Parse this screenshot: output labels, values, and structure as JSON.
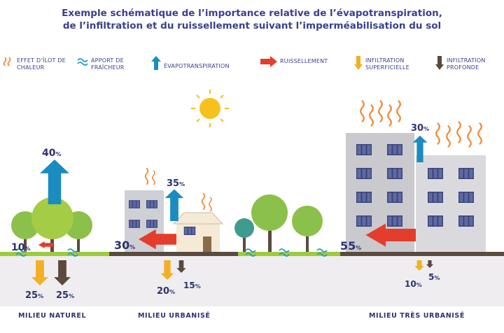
{
  "title": {
    "line1": "Exemple schématique de l’importance relative de l’évapotranspiration,",
    "line2": "de l’infiltration et du ruissellement suivant l’imperméabilisation du sol"
  },
  "legend": {
    "heat_island": "EFFET D’ÎLOT DE CHALEUR",
    "coolness": "APPORT DE FRAÎCHEUR",
    "evapotranspiration": "ÉVAPOTRANSPIRATION",
    "runoff": "RUISSELLEMENT",
    "shallow_infiltration": "INFILTRATION SUPERFICIELLE",
    "deep_infiltration": "INFILTRATION PROFONDE"
  },
  "colors": {
    "title": "#3a3f8f",
    "evapotranspiration": "#1a8cc1",
    "runoff": "#e53d2b",
    "shallow_infiltration": "#f2b022",
    "deep_infiltration": "#5a4a3c",
    "heat": "#ef8a3a",
    "coolness": "#2a9ccc",
    "sun": "#f6c11c",
    "tree": "#8bc04a",
    "ground": "#5b4b3f",
    "grass": "#9ccc3c"
  },
  "zones": [
    {
      "label": "MILIEU NATUREL",
      "evapotranspiration": "40",
      "runoff": "10",
      "shallow_infiltration": "25",
      "deep_infiltration": "25"
    },
    {
      "label": "MILIEU URBANISÉ",
      "evapotranspiration": "35",
      "runoff": "30",
      "shallow_infiltration": "20",
      "deep_infiltration": "15"
    },
    {
      "label": "MILIEU TRÈS URBANISÉ",
      "evapotranspiration": "30",
      "runoff": "55",
      "shallow_infiltration": "10",
      "deep_infiltration": "5"
    }
  ],
  "percent_sign": "%"
}
